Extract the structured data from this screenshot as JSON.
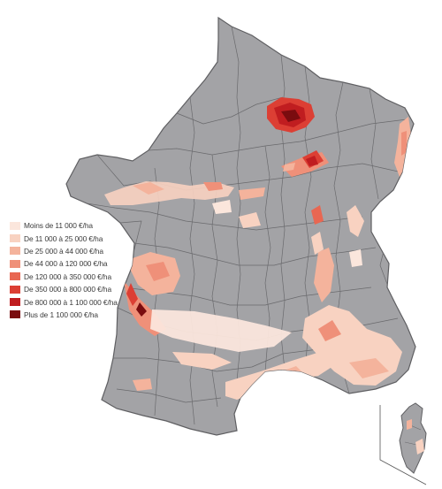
{
  "map": {
    "base_fill": "#a3a3a6",
    "border_color": "#5f5f62",
    "background": "#ffffff"
  },
  "legend": {
    "items": [
      {
        "label": "Moins de 11 000 €/ha",
        "color": "#fbe6dc"
      },
      {
        "label": "De 11 000 à 25 000 €/ha",
        "color": "#f8d2c1"
      },
      {
        "label": "De 25 000 à 44 000 €/ha",
        "color": "#f4b39c"
      },
      {
        "label": "De 44 000 à 120 000 €/ha",
        "color": "#ef9079"
      },
      {
        "label": "De 120 000 à 350 000 €/ha",
        "color": "#e86752"
      },
      {
        "label": "De 350 000 à 800 000 €/ha",
        "color": "#dc3f34"
      },
      {
        "label": "De 800 000 à 1 100 000 €/ha",
        "color": "#c01d20"
      },
      {
        "label": "Plus de 1 100 000 €/ha",
        "color": "#7a0c0f"
      }
    ]
  }
}
